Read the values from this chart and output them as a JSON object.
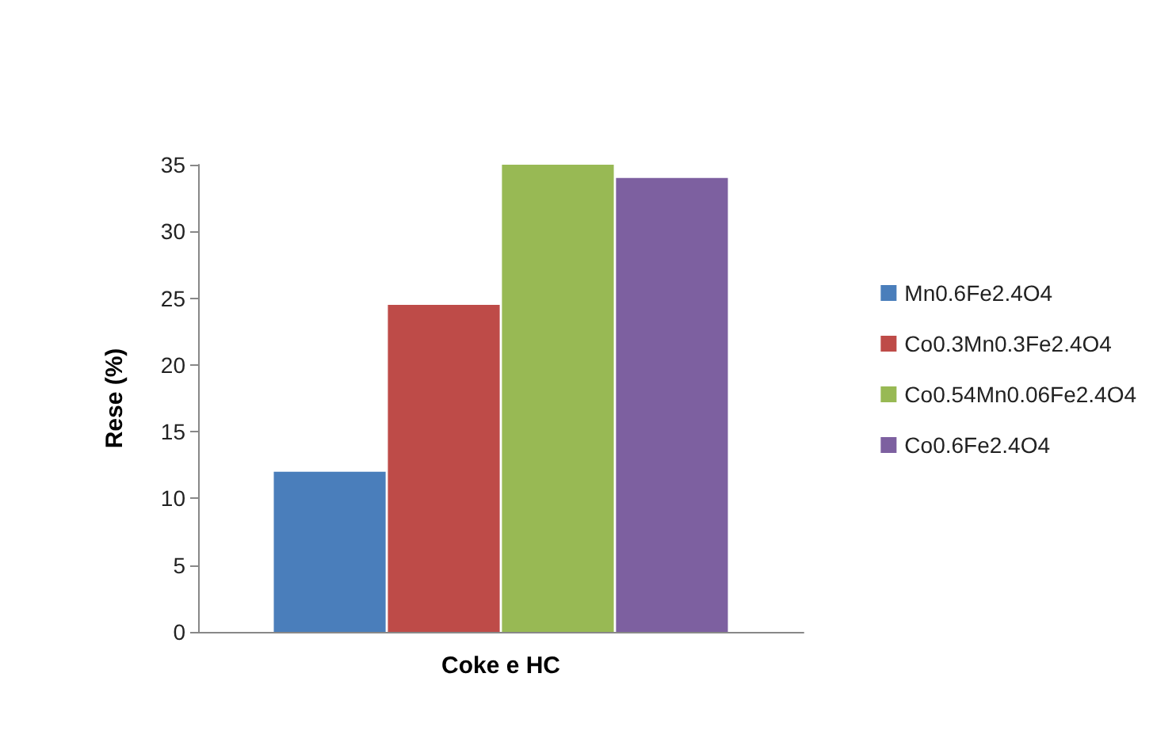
{
  "chart_data": {
    "type": "bar",
    "ylabel": "Rese (%)",
    "categories": [
      "Coke e HC"
    ],
    "series": [
      {
        "name": "Mn0.6Fe2.4O4",
        "color": "#4a7ebb",
        "values": [
          12
        ]
      },
      {
        "name": "Co0.3Mn0.3Fe2.4O4",
        "color": "#be4b48",
        "values": [
          24.5
        ]
      },
      {
        "name": "Co0.54Mn0.06Fe2.4O4",
        "color": "#98b954",
        "values": [
          35
        ]
      },
      {
        "name": "Co0.6Fe2.4O4",
        "color": "#7d60a0",
        "values": [
          34
        ]
      }
    ],
    "ylim": [
      0,
      35
    ],
    "yticks": [
      0,
      5,
      10,
      15,
      20,
      25,
      30,
      35
    ],
    "grid": false,
    "legend": "right"
  }
}
